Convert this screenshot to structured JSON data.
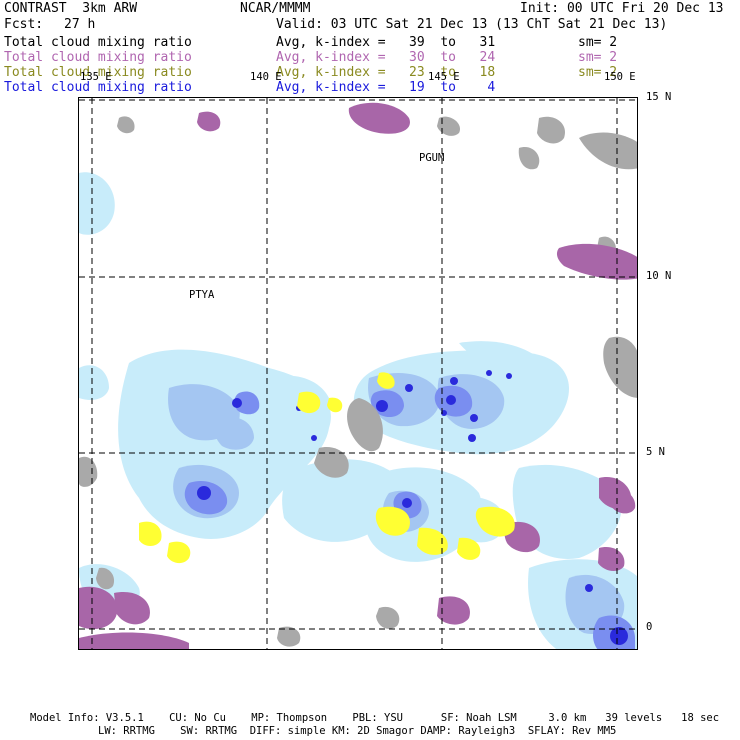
{
  "header": {
    "model": "CONTRAST  3km ARW",
    "org": "NCAR/MMMM",
    "init": "Init: 00 UTC Fri 20 Dec 13",
    "fcst_label": "Fcst:",
    "fcst_value": "27 h",
    "valid": "Valid: 03 UTC Sat 21 Dec 13 (13 ChT Sat 21 Dec 13)"
  },
  "legend": [
    {
      "field": "Total cloud mixing ratio",
      "range": "Avg, k-index =   39  to   31",
      "sm": "sm= 2",
      "color": "#000000"
    },
    {
      "field": "Total cloud mixing ratio",
      "range": "Avg, k-index =   30  to   24",
      "sm": "sm= 2",
      "color": "#b066b0"
    },
    {
      "field": "Total cloud mixing ratio",
      "range": "Avg, k-index =   23  to   18",
      "sm": "sm= 2",
      "color": "#8a8a20"
    },
    {
      "field": "Total cloud mixing ratio",
      "range": "Avg, k-index =   19  to    4",
      "sm": "",
      "color": "#1a1adc"
    }
  ],
  "map": {
    "lon_labels": [
      "135 E",
      "140 E",
      "145 E",
      "150 E"
    ],
    "lat_labels": [
      "15 N",
      "10 N",
      "5 N",
      "0"
    ],
    "stations": [
      "PGUM",
      "PTYA"
    ],
    "colors": {
      "gray": "#a9a9a9",
      "purple": "#a866a8",
      "yellow": "#ffff33",
      "lightblue": "#c8ecfa",
      "blue1": "#a4c6f2",
      "blue2": "#7a8ef0",
      "blue3": "#2a2adc"
    }
  },
  "footer": {
    "line1": "Model Info: V3.5.1    CU: No Cu    MP: Thompson    PBL: YSU      SF: Noah LSM     3.0 km   39 levels   18 sec",
    "line2": "LW: RRTMG    SW: RRTMG  DIFF: simple KM: 2D Smagor DAMP: Rayleigh3  SFLAY: Rev MM5"
  }
}
